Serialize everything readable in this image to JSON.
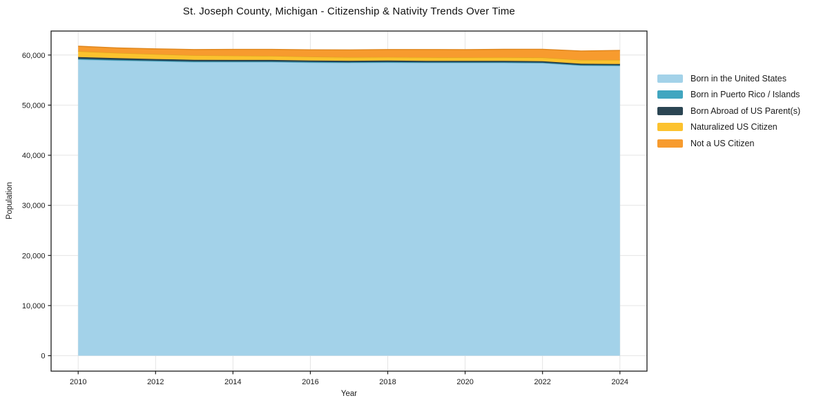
{
  "chart_data": {
    "type": "area",
    "stacked": true,
    "title": "St. Joseph County, Michigan - Citizenship & Nativity Trends Over Time",
    "xlabel": "Year",
    "ylabel": "Population",
    "x": [
      2010,
      2011,
      2012,
      2013,
      2014,
      2015,
      2016,
      2017,
      2018,
      2019,
      2020,
      2021,
      2022,
      2023,
      2024
    ],
    "series": [
      {
        "name": "Born in the United States",
        "color": "#a3d2e9",
        "edge": "#7fb8d4",
        "values": [
          59100,
          58900,
          58750,
          58600,
          58600,
          58600,
          58500,
          58450,
          58500,
          58450,
          58450,
          58450,
          58400,
          57900,
          57850
        ]
      },
      {
        "name": "Born in Puerto Rico / Islands",
        "color": "#41a6c0",
        "edge": "#2d8fa8",
        "values": [
          150,
          140,
          130,
          130,
          120,
          120,
          120,
          110,
          110,
          110,
          100,
          100,
          100,
          100,
          100
        ]
      },
      {
        "name": "Born Abroad of US Parent(s)",
        "color": "#2b4553",
        "edge": "#203844",
        "values": [
          350,
          330,
          320,
          310,
          300,
          300,
          290,
          290,
          280,
          280,
          280,
          270,
          270,
          260,
          260
        ]
      },
      {
        "name": "Naturalized US Citizen",
        "color": "#fcc22e",
        "edge": "#e0a51f",
        "values": [
          1150,
          1050,
          980,
          900,
          850,
          800,
          750,
          720,
          700,
          700,
          700,
          720,
          730,
          750,
          800
        ]
      },
      {
        "name": "Not a US Citizen",
        "color": "#f79b2e",
        "edge": "#de851c",
        "values": [
          1000,
          1000,
          1050,
          1150,
          1250,
          1300,
          1380,
          1450,
          1500,
          1550,
          1550,
          1600,
          1650,
          1800,
          1900
        ]
      }
    ],
    "xticks": [
      2010,
      2012,
      2014,
      2016,
      2018,
      2020,
      2022,
      2024
    ],
    "yticks": [
      0,
      10000,
      20000,
      30000,
      40000,
      50000,
      60000
    ],
    "ytick_labels": [
      "0",
      "10,000",
      "20,000",
      "30,000",
      "40,000",
      "50,000",
      "60,000"
    ],
    "xlim": [
      2009.3,
      2024.7
    ],
    "ylim": [
      -3085,
      64785
    ],
    "grid": true,
    "grid_color": "#e4e4e4",
    "axis_color": "#1a1a1a",
    "background_color": "#ffffff",
    "legend_position": "right"
  }
}
